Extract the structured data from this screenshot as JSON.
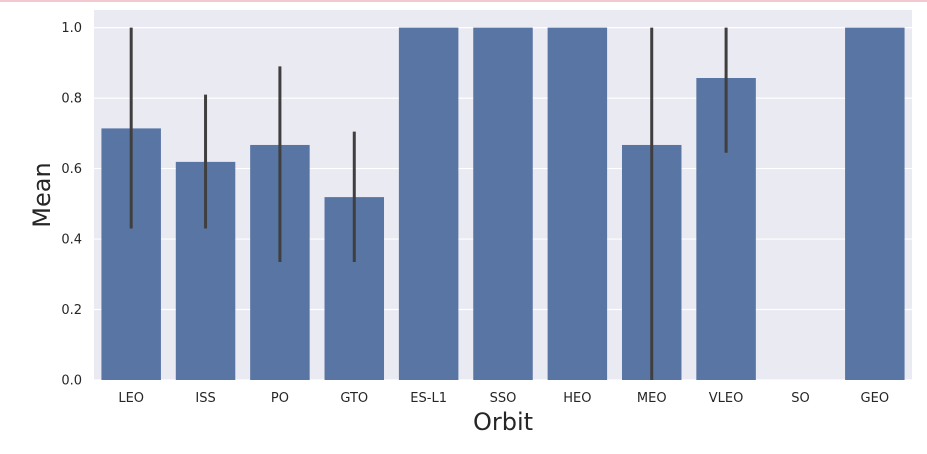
{
  "chart_data": {
    "type": "bar",
    "title": "",
    "xlabel": "Orbit",
    "ylabel": "Mean",
    "ylim": [
      0,
      1.05
    ],
    "yticks": [
      "0.0",
      "0.2",
      "0.4",
      "0.6",
      "0.8",
      "1.0"
    ],
    "grid": true,
    "legend": "none",
    "categories": [
      "LEO",
      "ISS",
      "PO",
      "GTO",
      "ES-L1",
      "SSO",
      "HEO",
      "MEO",
      "VLEO",
      "SO",
      "GEO"
    ],
    "values": [
      0.714,
      0.619,
      0.667,
      0.519,
      1.0,
      1.0,
      1.0,
      0.667,
      0.857,
      0.0,
      1.0
    ],
    "error_bars": [
      [
        0.43,
        1.0
      ],
      [
        0.43,
        0.81
      ],
      [
        0.335,
        0.89
      ],
      [
        0.335,
        0.705
      ],
      null,
      null,
      null,
      [
        0.0,
        1.0
      ],
      [
        0.645,
        1.0
      ],
      null,
      null
    ],
    "colors": {
      "bar": "#5875a4",
      "plot_bg": "#eaeaf2",
      "grid": "#ffffff",
      "error_bar": "#3f3f3f"
    }
  }
}
